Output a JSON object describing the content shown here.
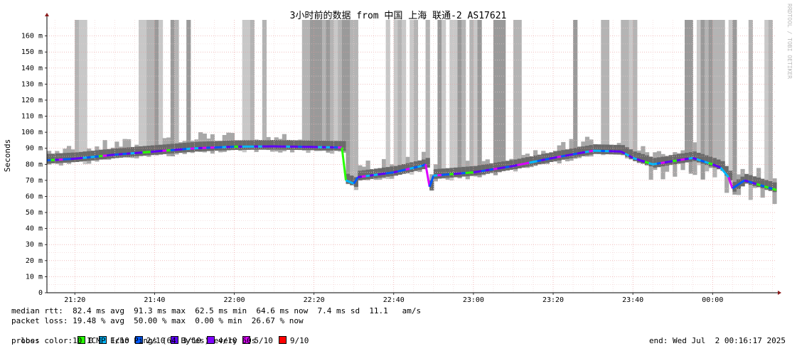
{
  "chart_data": {
    "type": "area",
    "title": "3小时前的数据 from 中国 上海 联通-2 AS17621",
    "ylabel": "Seconds",
    "credit": "RRDTOOL / TOBI OETIKER",
    "y_ticks": [
      "0",
      "10 m",
      "20 m",
      "30 m",
      "40 m",
      "50 m",
      "60 m",
      "70 m",
      "80 m",
      "90 m",
      "100 m",
      "110 m",
      "120 m",
      "130 m",
      "140 m",
      "150 m",
      "160 m"
    ],
    "ylim": [
      0,
      170
    ],
    "x_ticks": [
      "21:20",
      "21:40",
      "22:00",
      "22:20",
      "22:40",
      "23:00",
      "23:20",
      "23:40",
      "00:00"
    ],
    "x_range_minutes": [
      "21:13",
      "00:16"
    ],
    "grid": true,
    "series": [
      {
        "name": "median rtt",
        "unit": "ms",
        "points": [
          [
            "21:13",
            82.5
          ],
          [
            "21:20",
            83.5
          ],
          [
            "21:30",
            86
          ],
          [
            "21:40",
            88
          ],
          [
            "21:50",
            90
          ],
          [
            "22:00",
            91
          ],
          [
            "22:10",
            91.2
          ],
          [
            "22:20",
            90.8
          ],
          [
            "22:27",
            90.5
          ],
          [
            "22:28",
            70
          ],
          [
            "22:30",
            68
          ],
          [
            "22:31",
            72
          ],
          [
            "22:40",
            75
          ],
          [
            "22:47",
            79
          ],
          [
            "22:48",
            80
          ],
          [
            "22:49",
            66
          ],
          [
            "22:50",
            73
          ],
          [
            "23:00",
            75
          ],
          [
            "23:10",
            79
          ],
          [
            "23:20",
            84
          ],
          [
            "23:30",
            88.5
          ],
          [
            "23:37",
            88
          ],
          [
            "23:40",
            84
          ],
          [
            "23:45",
            80
          ],
          [
            "23:50",
            82
          ],
          [
            "23:55",
            84
          ],
          [
            "00:00",
            80
          ],
          [
            "00:02",
            78
          ],
          [
            "00:04",
            72
          ],
          [
            "00:05",
            65
          ],
          [
            "00:08",
            70
          ],
          [
            "00:12",
            67
          ],
          [
            "00:16",
            64
          ]
        ]
      }
    ],
    "stats": {
      "median_rtt": {
        "avg": "82.4 ms",
        "max": "91.3 ms",
        "min": "62.5 ms",
        "now": "64.6 ms",
        "sd": "7.4 ms",
        "am_s": "11.1"
      },
      "packet_loss": {
        "avg": "19.48 %",
        "max": "50.00 %",
        "min": "0.00 %",
        "now": "26.67 %"
      }
    }
  },
  "legend": {
    "median_line": "median rtt:  82.4 ms avg  91.3 ms max  62.5 ms min  64.6 ms now  7.4 ms sd  11.1   am/s",
    "loss_line": "packet loss: 19.48 % avg  50.00 % max  0.00 % min  26.67 % now",
    "loss_color_label": "loss color: ",
    "loss_colors": [
      {
        "label": "0",
        "color": "#26ff00"
      },
      {
        "label": "1/10",
        "color": "#00b8ff"
      },
      {
        "label": "2/10",
        "color": "#0059ff"
      },
      {
        "label": "3/10",
        "color": "#5e00ff"
      },
      {
        "label": "4/10",
        "color": "#7e00ff"
      },
      {
        "label": "5/10",
        "color": "#dd00ff"
      },
      {
        "label": "9/10",
        "color": "#ff0000"
      }
    ],
    "probe_line": "probe:       10 ICMP Echo Pings (64 Bytes) every 60s",
    "end_line": "end: Wed Jul  2 00:16:17 2025"
  }
}
